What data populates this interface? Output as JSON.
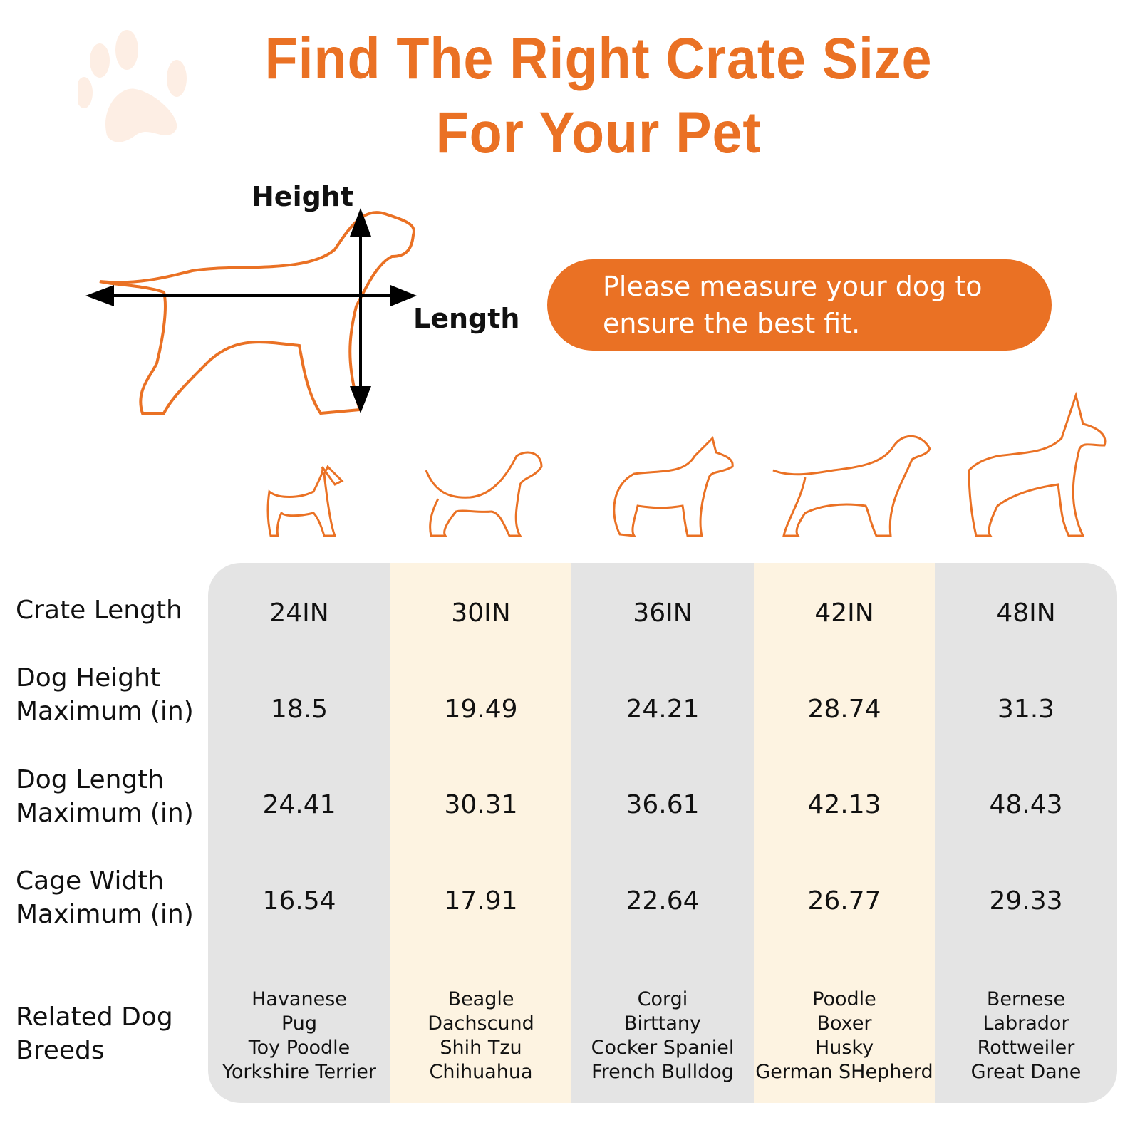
{
  "title": {
    "line1": "Find The Right Crate Size",
    "line2": "For Your Pet"
  },
  "diagram": {
    "height_label": "Height",
    "length_label": "Length"
  },
  "notice": "Please measure your dog to ensure the best fit.",
  "colors": {
    "accent": "#ea7124",
    "column_gray": "#e4e4e4",
    "column_cream": "#fdf3e1",
    "paw_faded": "#fdeee4"
  },
  "row_labels": [
    "Crate Length",
    "Dog Height Maximum (in)",
    "Dog Length Maximum (in)",
    "Cage Width Maximum (in)",
    "Related Dog Breeds"
  ],
  "columns": [
    {
      "crate_length": "24IN",
      "dog_height": "18.5",
      "dog_length": "24.41",
      "cage_width": "16.54",
      "breeds": [
        "Havanese",
        "Pug",
        "Toy Poodle",
        "Yorkshire Terrier"
      ]
    },
    {
      "crate_length": "30IN",
      "dog_height": "19.49",
      "dog_length": "30.31",
      "cage_width": "17.91",
      "breeds": [
        "Beagle",
        "Dachscund",
        "Shih Tzu",
        "Chihuahua"
      ]
    },
    {
      "crate_length": "36IN",
      "dog_height": "24.21",
      "dog_length": "36.61",
      "cage_width": "22.64",
      "breeds": [
        "Corgi",
        "Birttany",
        "Cocker Spaniel",
        "French Bulldog"
      ]
    },
    {
      "crate_length": "42IN",
      "dog_height": "28.74",
      "dog_length": "42.13",
      "cage_width": "26.77",
      "breeds": [
        "Poodle",
        "Boxer",
        "Husky",
        "German SHepherd"
      ]
    },
    {
      "crate_length": "48IN",
      "dog_height": "31.3",
      "dog_length": "48.43",
      "cage_width": "29.33",
      "breeds": [
        "Bernese",
        "Labrador",
        "Rottweiler",
        "Great Dane"
      ]
    }
  ]
}
